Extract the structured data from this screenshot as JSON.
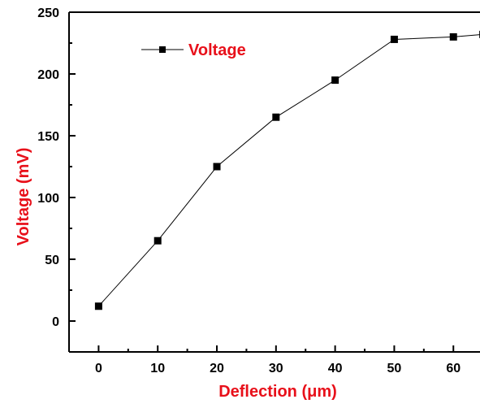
{
  "chart_data": {
    "type": "line",
    "xlabel": "Deflection (μm)",
    "ylabel": "Voltage (mV)",
    "xlim": [
      -5,
      64.5
    ],
    "ylim": [
      -25,
      250
    ],
    "x_ticks": [
      0,
      10,
      20,
      30,
      40,
      50,
      60
    ],
    "y_ticks": [
      0,
      50,
      100,
      150,
      200,
      250
    ],
    "grid": false,
    "legend_position": "top-left",
    "label_color": "#e8101a",
    "series": [
      {
        "name": "Voltage",
        "color": "#000000",
        "marker": "square",
        "x": [
          0,
          10,
          20,
          30,
          40,
          50,
          60,
          65
        ],
        "y": [
          12,
          65,
          125,
          165,
          195,
          228,
          230,
          232
        ]
      }
    ]
  }
}
